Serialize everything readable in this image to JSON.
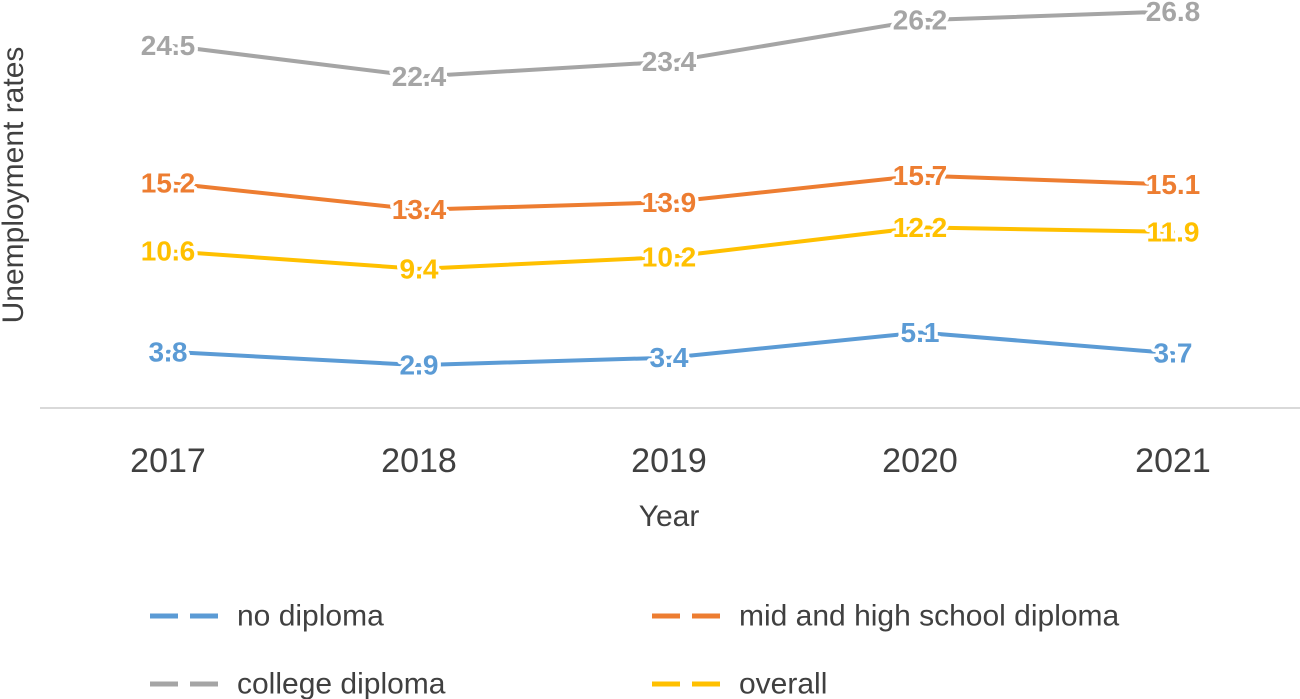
{
  "chart_data": {
    "type": "line",
    "title": "",
    "xlabel": "Year",
    "ylabel": "Unemployment rates",
    "categories": [
      "2017",
      "2018",
      "2019",
      "2020",
      "2021"
    ],
    "ylim": [
      0,
      28
    ],
    "grid": false,
    "legend_position": "bottom",
    "series": [
      {
        "name": "no diploma",
        "color": "#5B9BD5",
        "values": [
          3.8,
          2.9,
          3.4,
          5.1,
          3.7
        ],
        "labels": [
          "3.8",
          "2.9",
          "3.4",
          "5.1",
          "3.7"
        ]
      },
      {
        "name": "mid and high school diploma",
        "color": "#ED7D31",
        "values": [
          15.2,
          13.4,
          13.9,
          15.7,
          15.1
        ],
        "labels": [
          "15.2",
          "13.4",
          "13.9",
          "15.7",
          "15.1"
        ]
      },
      {
        "name": "college diploma",
        "color": "#A5A5A5",
        "values": [
          24.5,
          22.4,
          23.4,
          26.2,
          26.8
        ],
        "labels": [
          "24.5",
          "22.4",
          "23.4",
          "26.2",
          "26.8"
        ]
      },
      {
        "name": "overall",
        "color": "#FFC000",
        "values": [
          10.6,
          9.4,
          10.2,
          12.2,
          11.9
        ],
        "labels": [
          "10.6",
          "9.4",
          "10.2",
          "12.2",
          "11.9"
        ]
      }
    ]
  }
}
